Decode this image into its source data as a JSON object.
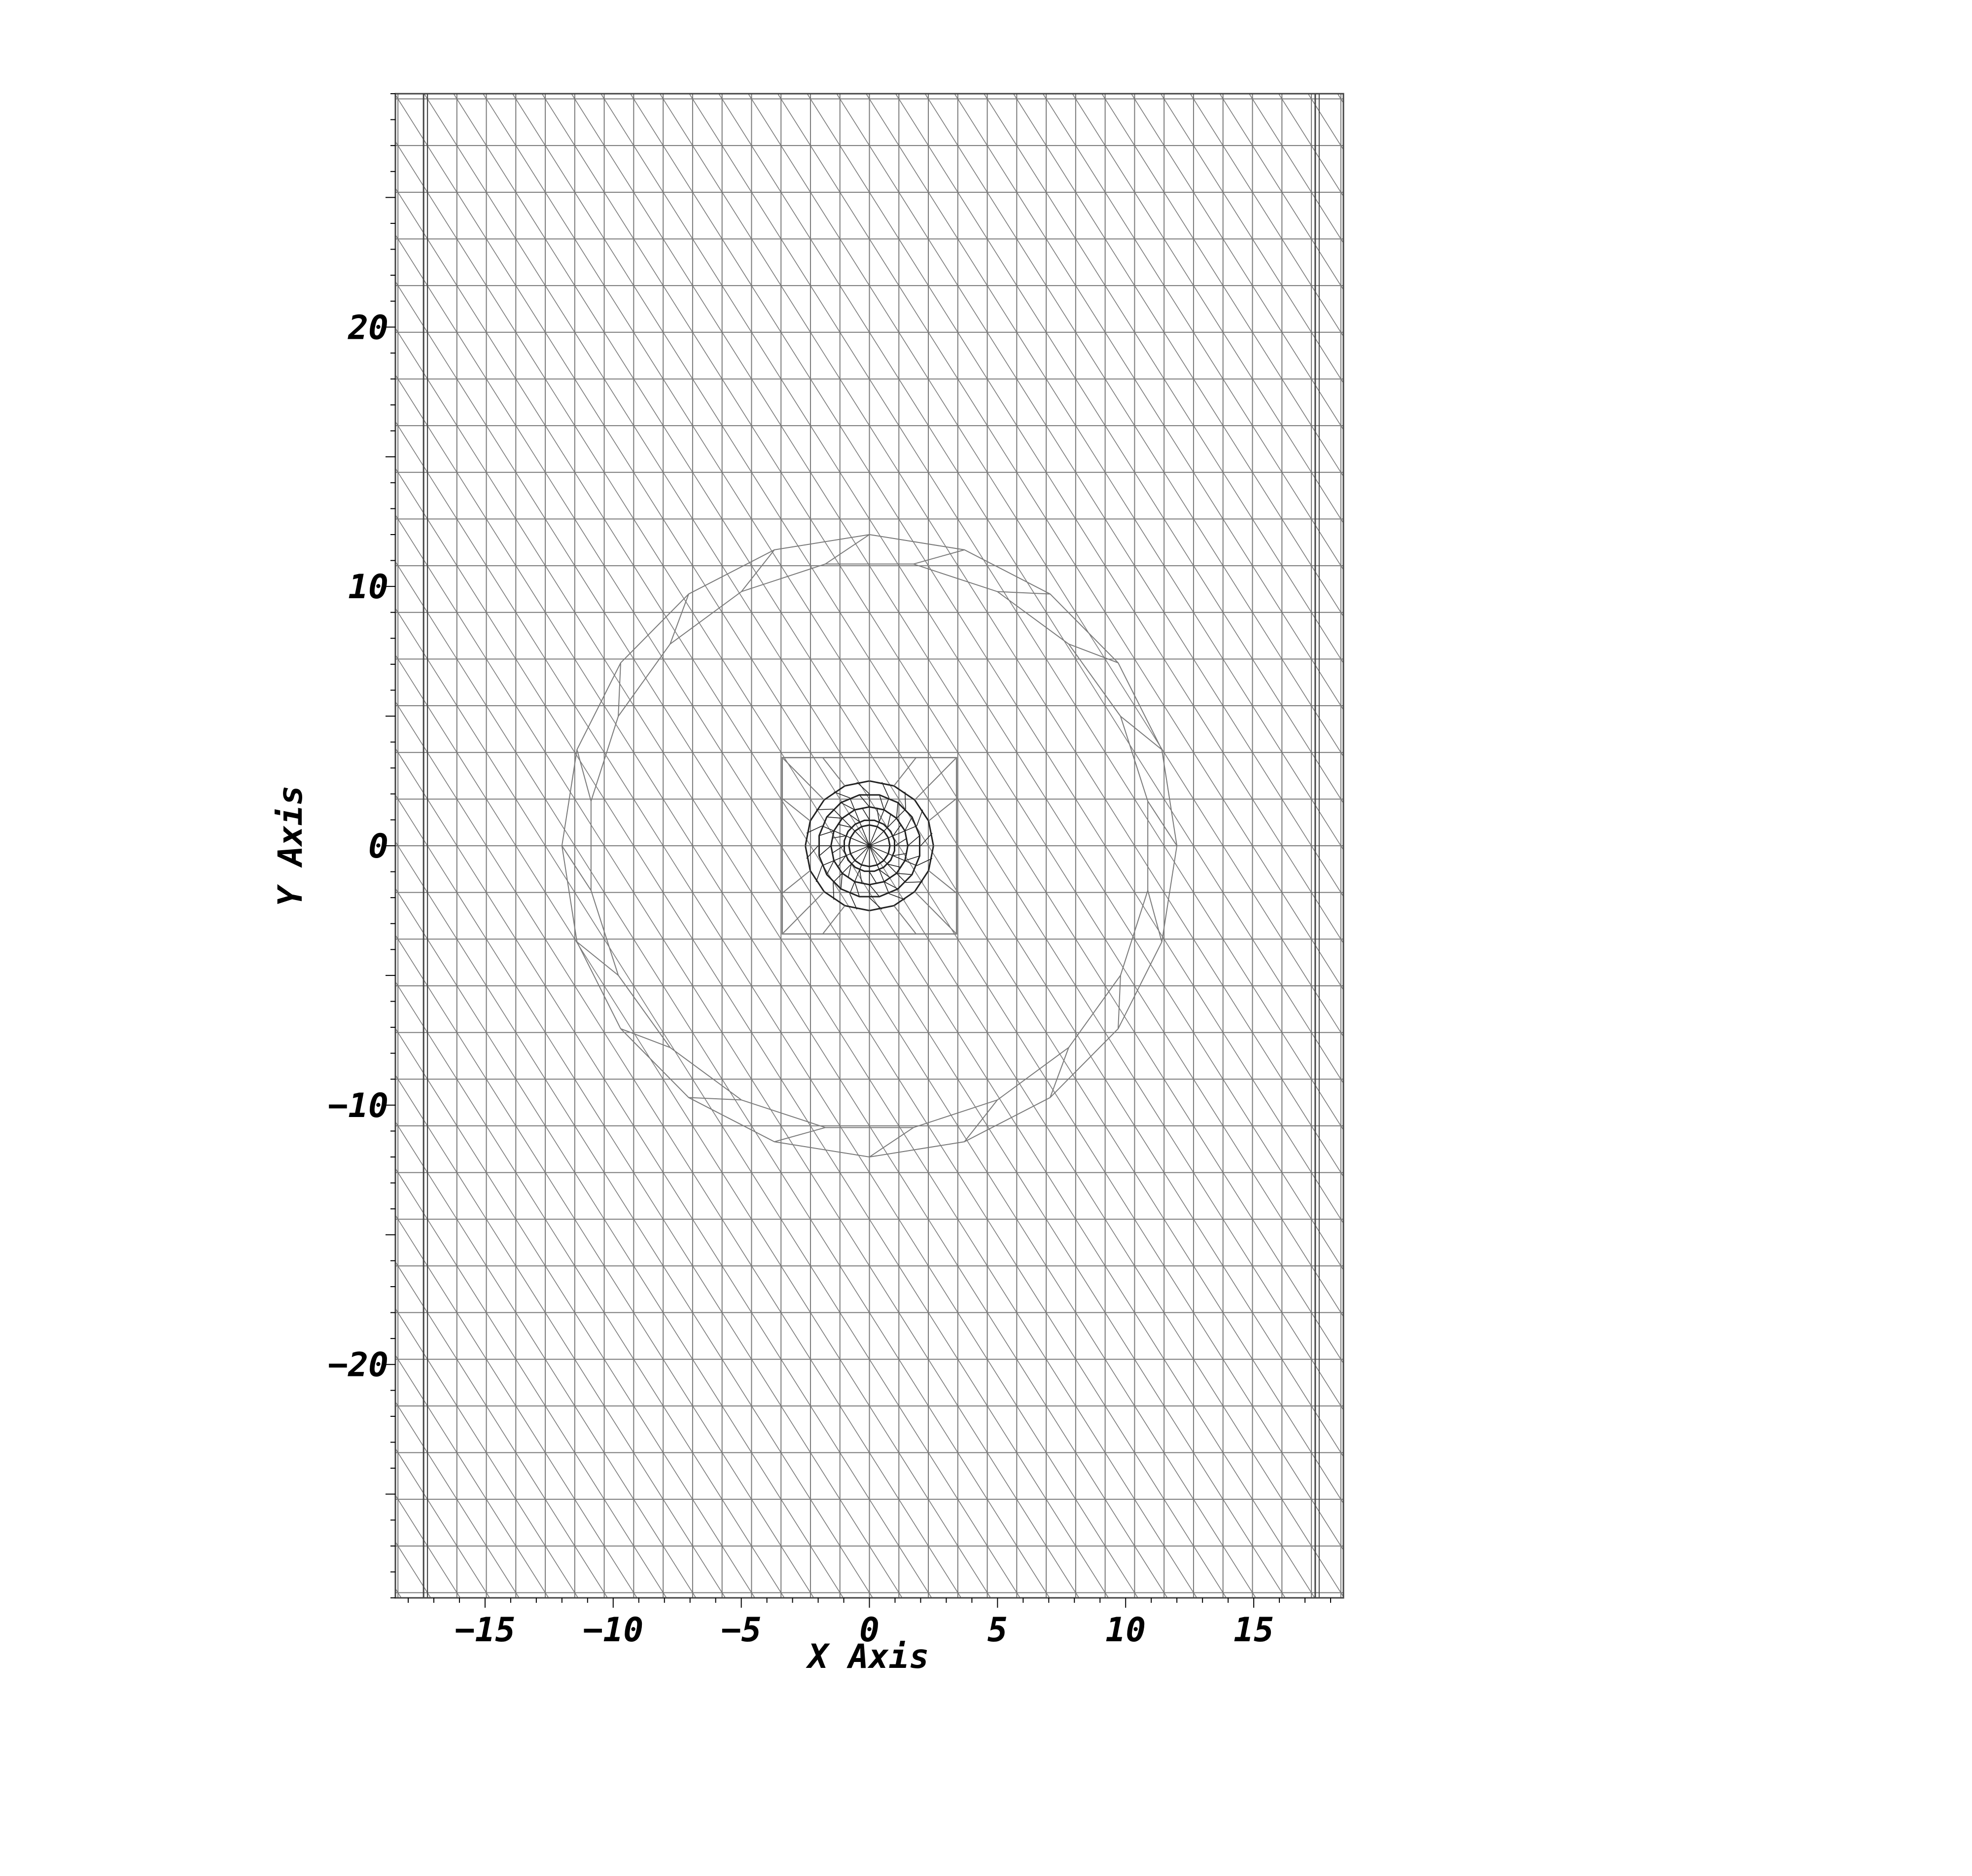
{
  "chart_data": {
    "type": "mesh",
    "xlabel": "X Axis",
    "ylabel": "Y Axis",
    "xlim": [
      -18.5,
      18.5
    ],
    "ylim": [
      -29,
      29
    ],
    "xticks": [
      {
        "value": -15,
        "label": "−15"
      },
      {
        "value": -10,
        "label": "−10"
      },
      {
        "value": -5,
        "label": "−5"
      },
      {
        "value": 0,
        "label": "0"
      },
      {
        "value": 5,
        "label": "5"
      },
      {
        "value": 10,
        "label": "10"
      },
      {
        "value": 15,
        "label": "15"
      }
    ],
    "yticks": [
      {
        "value": -20,
        "label": "−20"
      },
      {
        "value": -10,
        "label": "−10"
      },
      {
        "value": 0,
        "label": "0"
      },
      {
        "value": 10,
        "label": "10"
      },
      {
        "value": 20,
        "label": "20"
      }
    ],
    "grid": {
      "dx": 1.15,
      "dy": 1.8,
      "diagonal": "down-right"
    },
    "refinement_rings": [
      {
        "center": [
          0,
          0
        ],
        "radius": 12.0,
        "segments": 20
      },
      {
        "center": [
          0,
          0
        ],
        "radius": 11.0,
        "segments": 20
      },
      {
        "center": [
          0,
          0
        ],
        "radius": 2.5,
        "segments": 16
      },
      {
        "center": [
          0,
          0
        ],
        "radius": 2.0,
        "segments": 16
      },
      {
        "center": [
          0,
          0
        ],
        "radius": 1.5,
        "segments": 16
      },
      {
        "center": [
          0,
          0
        ],
        "radius": 1.0,
        "segments": 16
      },
      {
        "center": [
          0,
          0
        ],
        "radius": 0.8,
        "segments": 16
      }
    ],
    "inner_box": {
      "x": [
        -3.4,
        3.4
      ],
      "y": [
        -3.4,
        3.4
      ]
    },
    "wall_lines_x": [
      -17.4,
      17.4
    ],
    "colors": {
      "mesh": "#7a7a7a",
      "frame": "#444444",
      "dense": "#222222",
      "text": "#000000"
    }
  }
}
